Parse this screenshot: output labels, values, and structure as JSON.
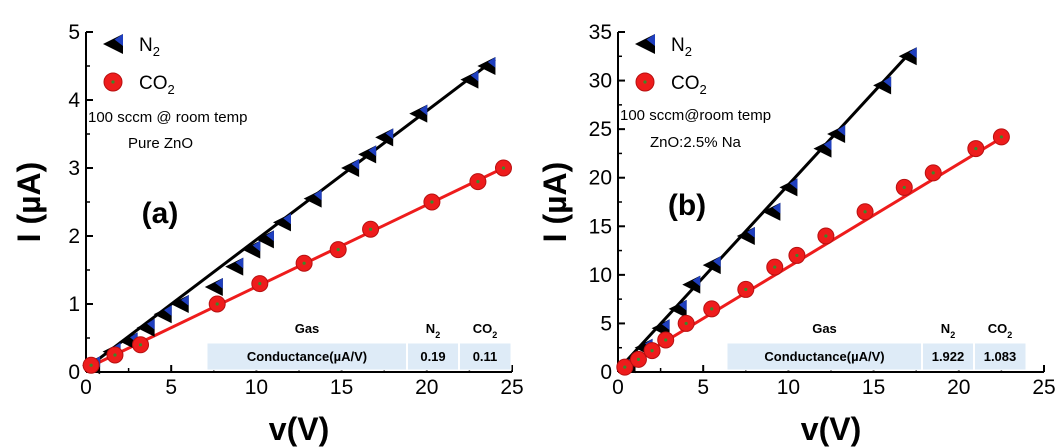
{
  "chart_data": [
    {
      "type": "scatter",
      "panel_label": "(a)",
      "xlabel": "v(V)",
      "ylabel": "I (µA)",
      "xlim": [
        0,
        25
      ],
      "ylim": [
        0,
        5
      ],
      "xticks": [
        "0",
        "5",
        "10",
        "15",
        "20",
        "25"
      ],
      "yticks": [
        "0",
        "1",
        "2",
        "3",
        "4",
        "5"
      ],
      "annotation": [
        "100 sccm @ room temp",
        "Pure ZnO"
      ],
      "legend_position": "top-left",
      "series": [
        {
          "name": "N2",
          "marker": "left-triangle",
          "color": "#000000",
          "fill": "#1f3fbf",
          "x": [
            0.3,
            1.5,
            2.5,
            3.5,
            4.5,
            5.5,
            7.5,
            8.7,
            9.7,
            10.5,
            11.5,
            13.3,
            15.5,
            16.5,
            17.5,
            19.5,
            22.5,
            23.5
          ],
          "y": [
            0.1,
            0.3,
            0.45,
            0.65,
            0.85,
            1.0,
            1.25,
            1.55,
            1.8,
            1.95,
            2.2,
            2.55,
            3.0,
            3.2,
            3.45,
            3.8,
            4.3,
            4.5
          ],
          "fit": [
            [
              0,
              0.05
            ],
            [
              24,
              4.6
            ]
          ]
        },
        {
          "name": "CO2",
          "marker": "circle",
          "color": "#ee1c1c",
          "x": [
            0.3,
            1.7,
            3.2,
            7.7,
            10.2,
            12.8,
            14.8,
            16.7,
            20.3,
            23.0,
            24.5
          ],
          "y": [
            0.1,
            0.25,
            0.4,
            1.0,
            1.3,
            1.6,
            1.8,
            2.1,
            2.5,
            2.8,
            3.0
          ],
          "fit": [
            [
              0,
              0.05
            ],
            [
              24.5,
              3.0
            ]
          ]
        }
      ],
      "table": {
        "headers": [
          "Gas",
          "N2",
          "CO2"
        ],
        "rows": [
          [
            "Conductance(µA/V)",
            "0.19",
            "0.11"
          ]
        ]
      }
    },
    {
      "type": "scatter",
      "panel_label": "(b)",
      "xlabel": "v(V)",
      "ylabel": "I (µA)",
      "xlim": [
        0,
        25
      ],
      "ylim": [
        0,
        35
      ],
      "xticks": [
        "0",
        "5",
        "10",
        "15",
        "20",
        "25"
      ],
      "yticks": [
        "0",
        "5",
        "10",
        "15",
        "20",
        "25",
        "30",
        "35"
      ],
      "annotation": [
        "100 sccm@room temp",
        "ZnO:2.5% Na"
      ],
      "legend_position": "top-left",
      "series": [
        {
          "name": "N2",
          "marker": "left-triangle",
          "color": "#000000",
          "fill": "#1f3fbf",
          "x": [
            0.5,
            1.5,
            2.5,
            3.5,
            4.3,
            5.5,
            7.5,
            9.0,
            10.0,
            12.0,
            12.8,
            15.5,
            17.0
          ],
          "y": [
            0.8,
            2.5,
            4.5,
            6.5,
            9.0,
            11.0,
            14.0,
            16.5,
            19.0,
            23.0,
            24.5,
            29.5,
            32.5
          ],
          "fit": [
            [
              0,
              0.2
            ],
            [
              17.2,
              33.0
            ]
          ]
        },
        {
          "name": "CO2",
          "marker": "circle",
          "color": "#ee1c1c",
          "x": [
            0.4,
            1.2,
            2.0,
            2.8,
            4.0,
            5.5,
            7.5,
            9.2,
            10.5,
            12.2,
            14.5,
            16.8,
            18.5,
            21.0,
            22.5
          ],
          "y": [
            0.5,
            1.3,
            2.2,
            3.3,
            5.0,
            6.5,
            8.5,
            10.8,
            12.0,
            14.0,
            16.5,
            19.0,
            20.5,
            23.0,
            24.2
          ],
          "fit": [
            [
              0,
              0.2
            ],
            [
              22.7,
              24.3
            ]
          ]
        }
      ],
      "table": {
        "headers": [
          "Gas",
          "N2",
          "CO2"
        ],
        "rows": [
          [
            "Conductance(µA/V)",
            "1.922",
            "1.083"
          ]
        ]
      }
    }
  ]
}
